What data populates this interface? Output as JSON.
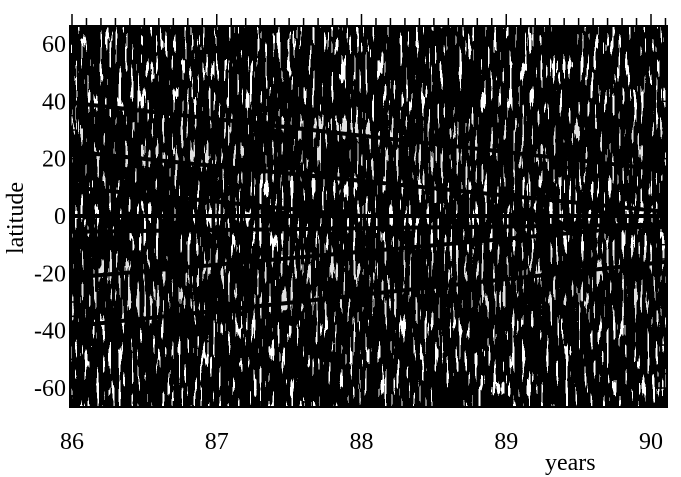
{
  "chart_data": {
    "type": "line",
    "title": "",
    "xlabel": "years",
    "ylabel": "latitude",
    "xlim": [
      86,
      90.1
    ],
    "ylim": [
      -67,
      67
    ],
    "x_ticks": [
      86,
      87,
      88,
      89,
      90
    ],
    "x_tick_labels": [
      "86",
      "87",
      "88",
      "89",
      "90"
    ],
    "y_ticks": [
      60,
      40,
      20,
      0,
      -20,
      -40,
      -60
    ],
    "y_tick_labels": [
      "60",
      "40",
      "20",
      "0",
      "-20",
      "-40",
      "-60"
    ],
    "grid": false,
    "legend": "none",
    "background": "noisy black-and-white latitude-time pattern",
    "series": [
      {
        "x": [
          86,
          90.1
        ],
        "y": [
          39.5,
          16
        ]
      },
      {
        "x": [
          86,
          90.1
        ],
        "y": [
          22.5,
          1.5
        ]
      },
      {
        "x": [
          86,
          88
        ],
        "y": [
          10,
          0
        ]
      },
      {
        "x": [
          86,
          90.1
        ],
        "y": [
          0,
          0
        ]
      },
      {
        "x": [
          86,
          90.1
        ],
        "y": [
          -5.5,
          -3
        ]
      },
      {
        "x": [
          86,
          90.1
        ],
        "y": [
          -21.5,
          -3
        ]
      },
      {
        "x": [
          86,
          90.1
        ],
        "y": [
          -38.5,
          -16
        ]
      }
    ]
  }
}
